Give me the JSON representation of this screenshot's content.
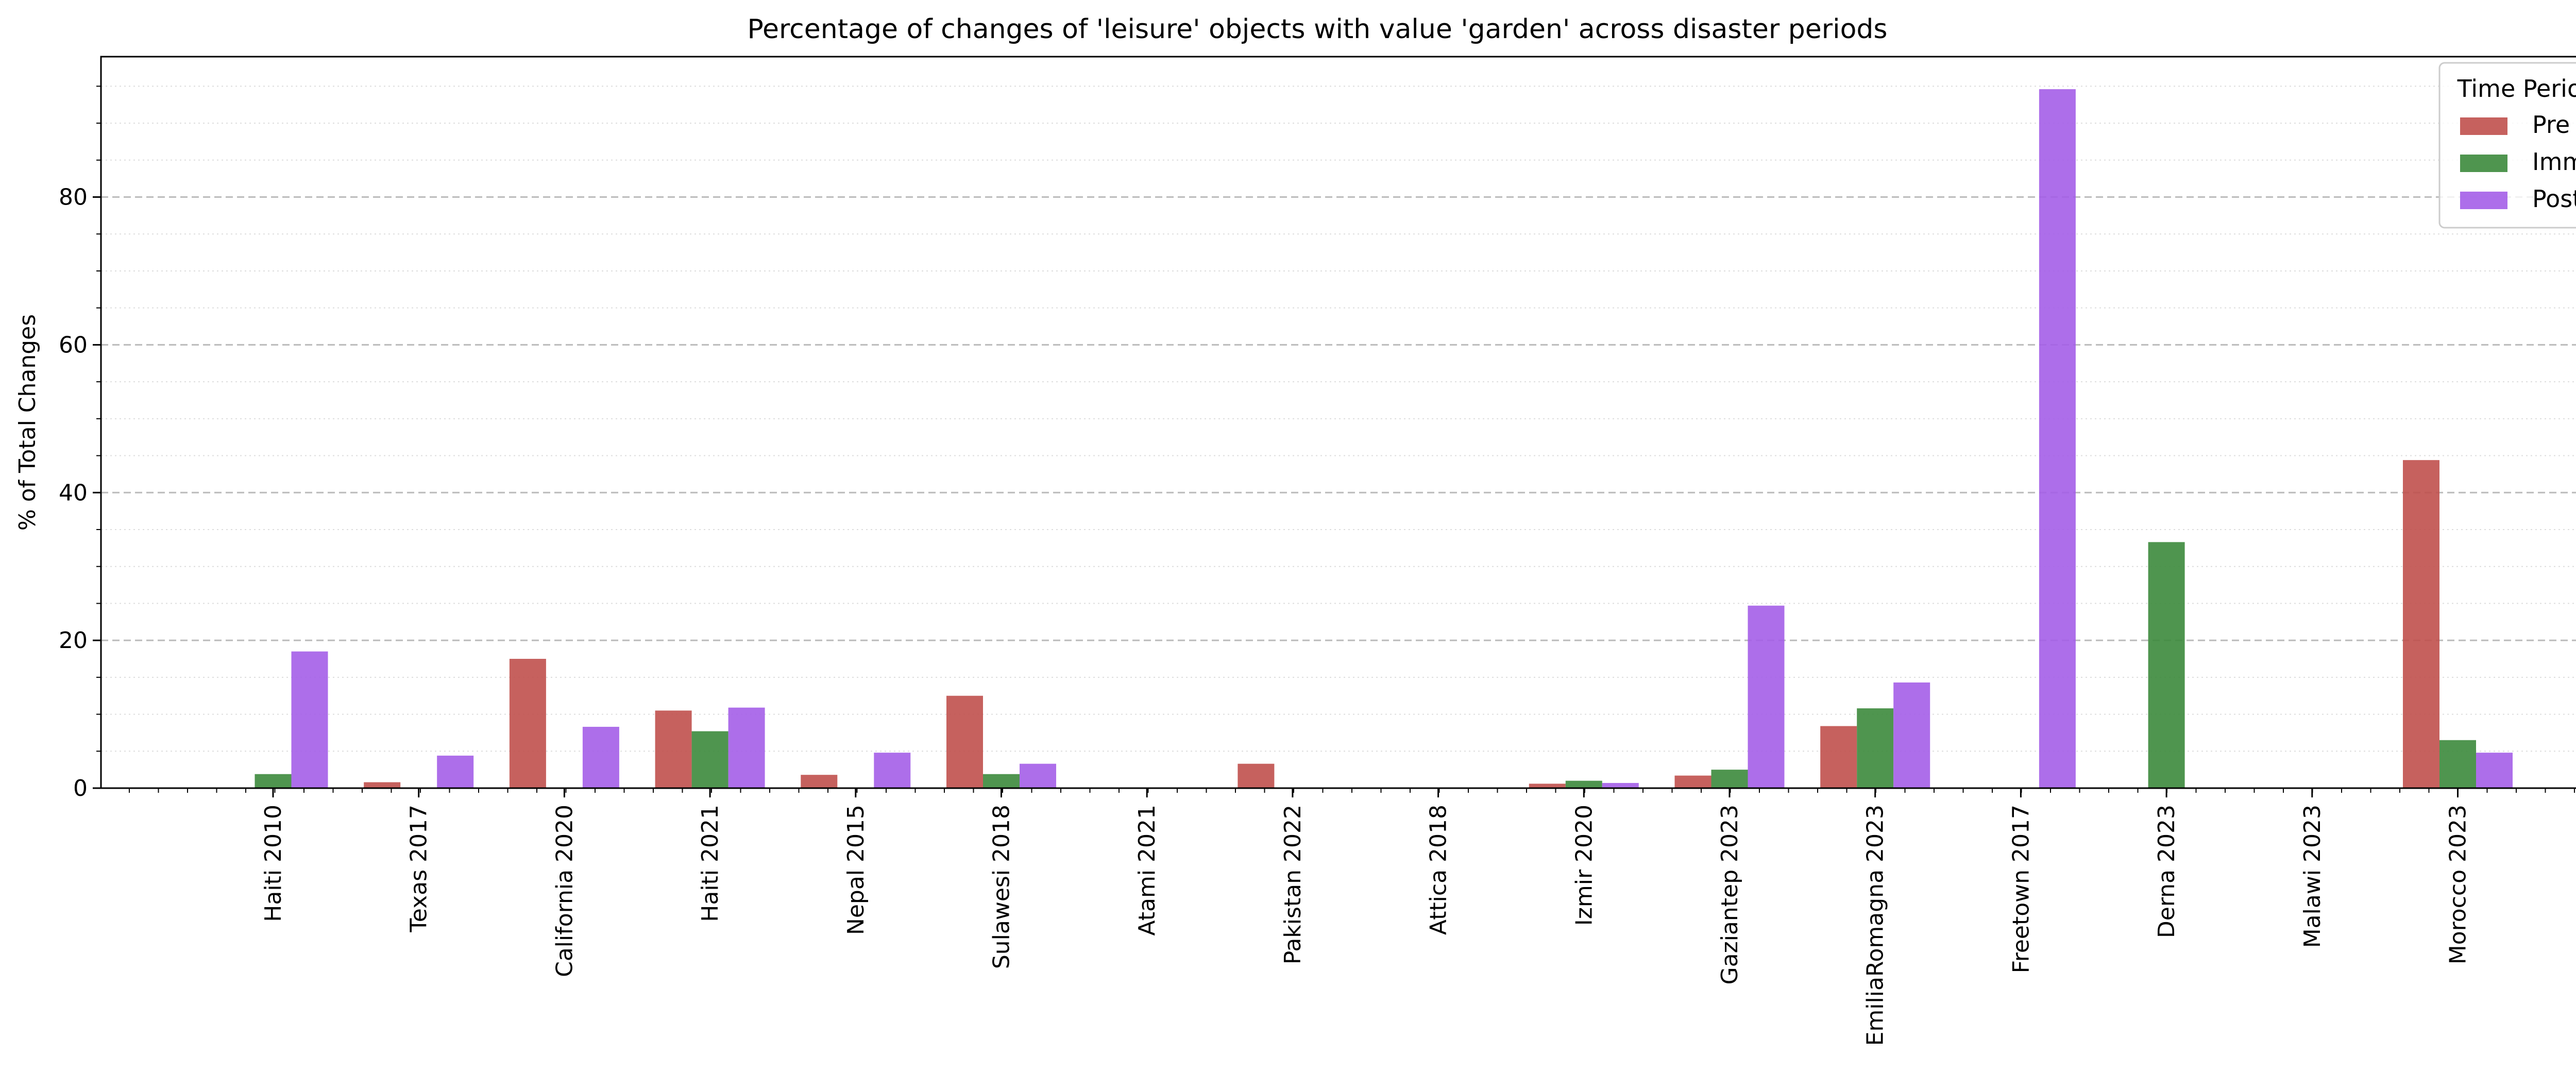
{
  "chart_data": {
    "type": "bar",
    "title": "Percentage of changes of 'leisure' objects with value 'garden' across disaster periods",
    "xlabel": "",
    "ylabel": "% of Total Changes",
    "ylim": [
      0,
      99
    ],
    "yticks": [
      0,
      20,
      40,
      60,
      80
    ],
    "grid": "y-major-dashed-minor-dotted",
    "legend": {
      "title": "Time Period",
      "placement": "top-right"
    },
    "categories": [
      "Haiti 2010",
      "Texas 2017",
      "California 2020",
      "Haiti 2021",
      "Nepal 2015",
      "Sulawesi 2018",
      "Atami 2021",
      "Pakistan 2022",
      "Attica 2018",
      "Izmir 2020",
      "Gaziantep 2023",
      "EmiliaRomagna 2023",
      "Freetown 2017",
      "Derna 2023",
      "Malawi 2023",
      "Morocco 2023"
    ],
    "series": [
      {
        "name": "Pre",
        "color": "#c0504d",
        "values": [
          0,
          0.8,
          17.5,
          10.5,
          1.8,
          12.5,
          0,
          3.3,
          0,
          0.6,
          1.7,
          8.4,
          0,
          0,
          0,
          44.4
        ]
      },
      {
        "name": "Imm",
        "color": "#3c8a3c",
        "values": [
          1.9,
          0,
          0,
          7.7,
          0,
          1.9,
          0,
          0,
          0,
          1.0,
          2.5,
          10.8,
          0,
          33.3,
          0,
          6.5
        ]
      },
      {
        "name": "Post",
        "color": "#a45ee8",
        "values": [
          18.5,
          4.4,
          8.3,
          10.9,
          4.8,
          3.3,
          0,
          0,
          0,
          0.7,
          24.7,
          14.3,
          94.6,
          0,
          0,
          4.8
        ]
      }
    ]
  }
}
